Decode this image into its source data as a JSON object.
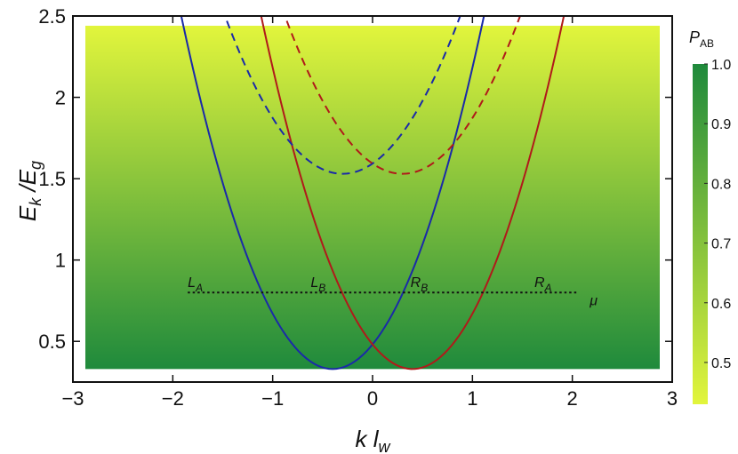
{
  "chart_data": {
    "type": "line",
    "background": {
      "type": "heatmap",
      "variable": "P",
      "variable_sub": "AB",
      "colorbar_ticks": [
        "0.5",
        "0.6",
        "0.7",
        "0.8",
        "0.9",
        "1.0"
      ],
      "colorbar_range": [
        0.43,
        1.0
      ],
      "color_low": "#e2f53c",
      "color_high": "#1f8a3c",
      "gradient": "vertical, P_AB ≈ 1.0 at bottom to ≈ 0.45 at top"
    },
    "xlim": [
      -3,
      3
    ],
    "ylim": [
      0.25,
      2.5
    ],
    "x_ticks": [
      "−3",
      "−2",
      "−1",
      "0",
      "1",
      "2",
      "3"
    ],
    "x_tick_values": [
      -3,
      -2,
      -1,
      0,
      1,
      2,
      3
    ],
    "y_ticks": [
      "0.5",
      "1",
      "1.5",
      "2",
      "2.5"
    ],
    "y_tick_values": [
      0.5,
      1,
      1.5,
      2,
      2.5
    ],
    "xlabel": {
      "main": "k l",
      "sub": "w"
    },
    "ylabel": {
      "main": "E",
      "sub1": "k",
      "mid": " /E",
      "sub2": "g"
    },
    "heatmap_region": {
      "x": [
        -3,
        3
      ],
      "y": [
        0.33,
        2.44
      ]
    },
    "series": [
      {
        "color": "#1a2aa8",
        "style": "solid",
        "vertex": [
          -0.4,
          0.33
        ],
        "curvature": 0.945,
        "x_range": [
          -2.5,
          2.0
        ]
      },
      {
        "color": "#b01a1a",
        "style": "solid",
        "vertex": [
          0.4,
          0.33
        ],
        "curvature": 0.945,
        "x_range": [
          -1.95,
          2.5
        ]
      },
      {
        "color": "#1a2aa8",
        "style": "dashed",
        "vertex": [
          -0.3,
          1.53
        ],
        "curvature": 0.7,
        "x_range": [
          -1.55,
          0.95
        ]
      },
      {
        "color": "#b01a1a",
        "style": "dashed",
        "vertex": [
          0.3,
          1.53
        ],
        "curvature": 0.7,
        "x_range": [
          -0.95,
          1.55
        ]
      }
    ],
    "chemical_potential": {
      "y": 0.8,
      "x_range": [
        -1.85,
        2.05
      ],
      "label": "μ"
    },
    "annotations": [
      {
        "main": "L",
        "sub": "A",
        "x": -1.85,
        "y": 0.835
      },
      {
        "main": "L",
        "sub": "B",
        "x": -0.62,
        "y": 0.835
      },
      {
        "main": "R",
        "sub": "B",
        "x": 0.38,
        "y": 0.835
      },
      {
        "main": "R",
        "sub": "A",
        "x": 1.62,
        "y": 0.835
      }
    ]
  }
}
